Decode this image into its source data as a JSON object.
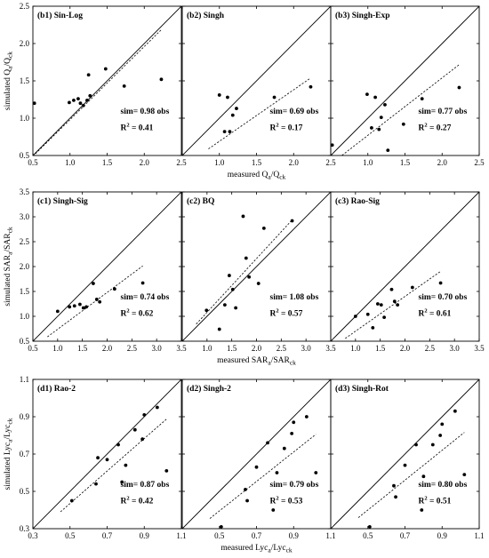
{
  "figure": {
    "rows": [
      {
        "id": "b",
        "ylabel_parts": [
          "simulated Q",
          "a",
          "/Q",
          "ck"
        ],
        "xlabel_parts": [
          "measured Q",
          "a",
          "/Q",
          "ck"
        ],
        "axis": {
          "min": 0.5,
          "max": 2.5,
          "ticks": [
            0.5,
            1.0,
            1.5,
            2.0,
            2.5
          ]
        }
      },
      {
        "id": "c",
        "ylabel_parts": [
          "simulated SAR",
          "a",
          "/SAR",
          "ck"
        ],
        "xlabel_parts": [
          "measured SAR",
          "a",
          "/SAR",
          "ck"
        ],
        "axis": {
          "min": 0.5,
          "max": 3.5,
          "ticks": [
            0.5,
            1.0,
            1.5,
            2.0,
            2.5,
            3.0,
            3.5
          ]
        }
      },
      {
        "id": "d",
        "ylabel_parts": [
          "simulated Lyc",
          "a",
          "/Lyc",
          "ck"
        ],
        "xlabel_parts": [
          "measured Lyc",
          "a",
          "/Lyc",
          "ck"
        ],
        "axis": {
          "min": 0.3,
          "max": 1.1,
          "ticks": [
            0.3,
            0.5,
            0.7,
            0.9,
            1.1
          ]
        }
      }
    ]
  },
  "chart_data": [
    {
      "type": "scatter",
      "row": 0,
      "col": 0,
      "title": "(b1) Sin-Log",
      "sim_text": "sim= 0.98 obs",
      "r2_value": "0.41",
      "slope": 0.98,
      "x": [
        0.52,
        0.99,
        1.05,
        1.11,
        1.14,
        1.18,
        1.23,
        1.25,
        1.27,
        1.48,
        1.73,
        2.23
      ],
      "y": [
        1.2,
        1.21,
        1.24,
        1.26,
        1.2,
        1.17,
        1.24,
        1.58,
        1.3,
        1.66,
        1.43,
        1.52
      ]
    },
    {
      "type": "scatter",
      "row": 0,
      "col": 1,
      "title": "(b2) Singh",
      "sim_text": "sim= 0.69 obs",
      "r2_value": "0.17",
      "slope": 0.69,
      "x": [
        1.0,
        1.07,
        1.11,
        1.14,
        1.18,
        1.23,
        1.74,
        2.23
      ],
      "y": [
        1.31,
        0.82,
        1.28,
        0.82,
        1.04,
        1.13,
        1.28,
        1.42
      ]
    },
    {
      "type": "scatter",
      "row": 0,
      "col": 2,
      "title": "(b3) Singh-Exp",
      "sim_text": "sim= 0.77 obs",
      "r2_value": "0.27",
      "slope": 0.77,
      "x": [
        0.52,
        0.99,
        1.05,
        1.1,
        1.15,
        1.18,
        1.23,
        1.27,
        1.48,
        1.73,
        2.23
      ],
      "y": [
        0.64,
        1.32,
        0.87,
        1.28,
        0.85,
        1.01,
        1.18,
        0.57,
        0.92,
        1.26,
        1.41
      ]
    },
    {
      "type": "scatter",
      "row": 1,
      "col": 0,
      "title": "(c1) Singh-Sig",
      "sim_text": "sim= 0.74 obs",
      "r2_value": "0.62",
      "slope": 0.74,
      "x": [
        1.0,
        1.24,
        1.34,
        1.45,
        1.52,
        1.58,
        1.72,
        1.79,
        1.85,
        2.15,
        2.72
      ],
      "y": [
        1.1,
        1.19,
        1.21,
        1.24,
        1.17,
        1.19,
        1.66,
        1.34,
        1.29,
        1.55,
        1.67
      ]
    },
    {
      "type": "scatter",
      "row": 1,
      "col": 1,
      "title": "(c2) BQ",
      "sim_text": "sim= 1.08 obs",
      "r2_value": "0.57",
      "slope": 1.08,
      "x": [
        0.99,
        1.25,
        1.36,
        1.45,
        1.52,
        1.58,
        1.73,
        1.79,
        1.85,
        2.04,
        2.15,
        2.72
      ],
      "y": [
        1.12,
        0.74,
        1.23,
        1.82,
        1.54,
        1.17,
        3.01,
        2.17,
        1.79,
        1.66,
        2.77,
        2.92
      ]
    },
    {
      "type": "scatter",
      "row": 1,
      "col": 2,
      "title": "(c3) Rao-Sig",
      "sim_text": "sim= 0.70 obs",
      "r2_value": "0.61",
      "slope": 0.7,
      "x": [
        1.0,
        1.25,
        1.35,
        1.45,
        1.52,
        1.58,
        1.73,
        1.79,
        1.85,
        2.15,
        2.72
      ],
      "y": [
        1.0,
        1.04,
        0.77,
        1.25,
        1.23,
        0.98,
        1.54,
        1.3,
        1.23,
        1.58,
        1.67
      ]
    },
    {
      "type": "scatter",
      "row": 2,
      "col": 0,
      "title": "(d1) Rao-2",
      "sim_text": "sim= 0.87 obs",
      "r2_value": "0.42",
      "slope": 0.87,
      "x": [
        0.51,
        0.64,
        0.65,
        0.7,
        0.76,
        0.78,
        0.8,
        0.85,
        0.89,
        0.9,
        0.97,
        1.02
      ],
      "y": [
        0.45,
        0.54,
        0.68,
        0.67,
        0.75,
        0.55,
        0.64,
        0.83,
        0.78,
        0.91,
        0.95,
        0.61
      ]
    },
    {
      "type": "scatter",
      "row": 2,
      "col": 1,
      "title": "(d2) Singh-2",
      "sim_text": "sim= 0.79 obs",
      "r2_value": "0.53",
      "slope": 0.79,
      "x": [
        0.51,
        0.64,
        0.65,
        0.7,
        0.76,
        0.79,
        0.81,
        0.85,
        0.89,
        0.9,
        0.97,
        1.02
      ],
      "y": [
        0.31,
        0.51,
        0.45,
        0.63,
        0.76,
        0.4,
        0.6,
        0.73,
        0.81,
        0.87,
        0.9,
        0.6
      ]
    },
    {
      "type": "scatter",
      "row": 2,
      "col": 2,
      "title": "(d3) Singh-Rot",
      "sim_text": "sim= 0.80 obs",
      "r2_value": "0.51",
      "slope": 0.8,
      "x": [
        0.51,
        0.64,
        0.65,
        0.7,
        0.76,
        0.79,
        0.8,
        0.85,
        0.89,
        0.9,
        0.97,
        1.02
      ],
      "y": [
        0.31,
        0.53,
        0.47,
        0.64,
        0.75,
        0.4,
        0.58,
        0.75,
        0.8,
        0.86,
        0.93,
        0.59
      ]
    }
  ]
}
